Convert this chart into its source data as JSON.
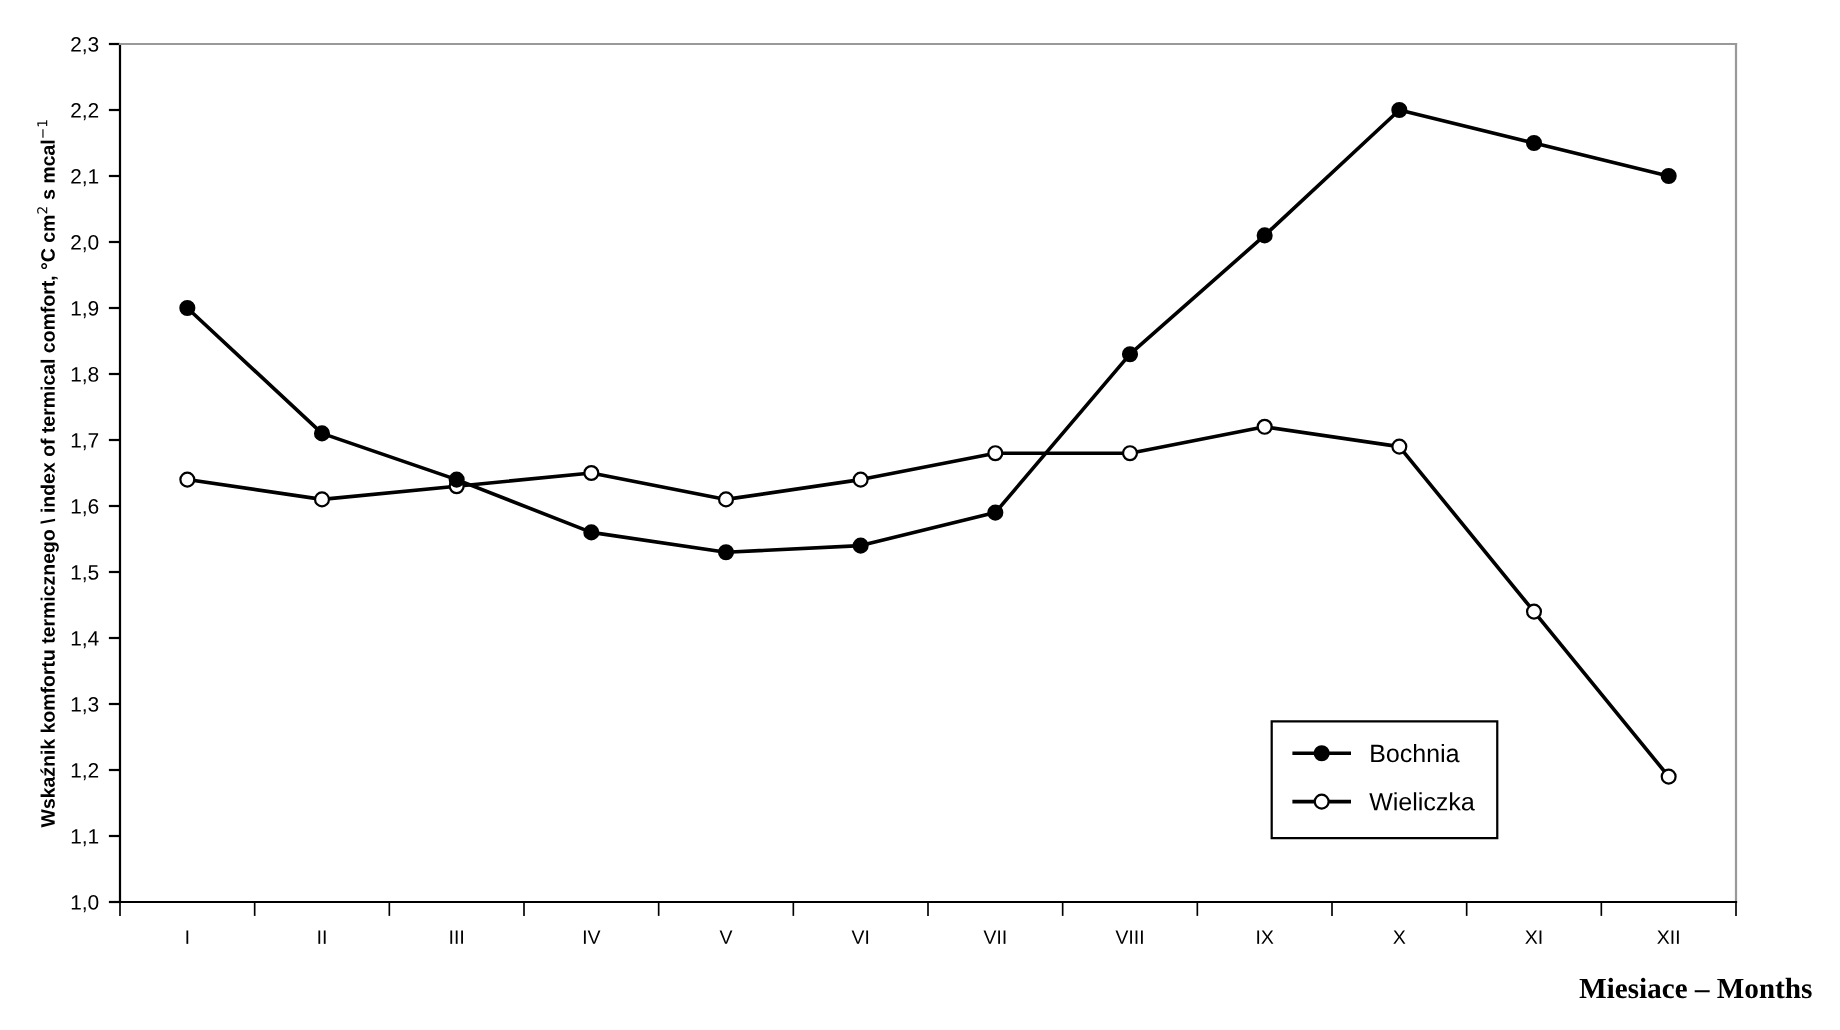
{
  "chart_data": {
    "type": "line",
    "xlabel": "Miesiace – Months",
    "ylabel": "Wskaźnik komfortu termicznego \\ index of termical comfort, °C cm$^{2}$ s mcal$^{−1}$",
    "categories": [
      "I",
      "II",
      "III",
      "IV",
      "V",
      "VI",
      "VII",
      "VIII",
      "IX",
      "X",
      "XI",
      "XII"
    ],
    "series": [
      {
        "name": "Bochnia",
        "color": "#000000",
        "marker": "circle",
        "values": [
          1.9,
          1.71,
          1.64,
          1.56,
          1.53,
          1.54,
          1.59,
          1.83,
          2.01,
          2.2,
          2.15,
          2.1
        ]
      },
      {
        "name": "Wieliczka",
        "color": "#000000",
        "marker": "circle",
        "values": [
          1.64,
          1.61,
          1.63,
          1.65,
          1.61,
          1.64,
          1.68,
          1.68,
          1.72,
          1.69,
          1.44,
          1.19
        ]
      }
    ],
    "ylim": [
      1.0,
      2.3
    ],
    "yticks": [
      {
        "value": 1.0,
        "label": "1,0"
      },
      {
        "value": 1.1,
        "label": "1,1"
      },
      {
        "value": 1.2,
        "label": "1,2"
      },
      {
        "value": 1.3,
        "label": "1,3"
      },
      {
        "value": 1.4,
        "label": "1,4"
      },
      {
        "value": 1.5,
        "label": "1,5"
      },
      {
        "value": 1.6,
        "label": "1,6"
      },
      {
        "value": 1.7,
        "label": "1,7"
      },
      {
        "value": 1.8,
        "label": "1,8"
      },
      {
        "value": 1.9,
        "label": "1,9"
      },
      {
        "value": 2.0,
        "label": "2,0"
      },
      {
        "value": 2.1,
        "label": "2,1"
      },
      {
        "value": 2.2,
        "label": "2,2"
      },
      {
        "value": 2.3,
        "label": "2,3"
      }
    ],
    "grid": false,
    "legend": "bottom right",
    "line_style": "solid"
  }
}
